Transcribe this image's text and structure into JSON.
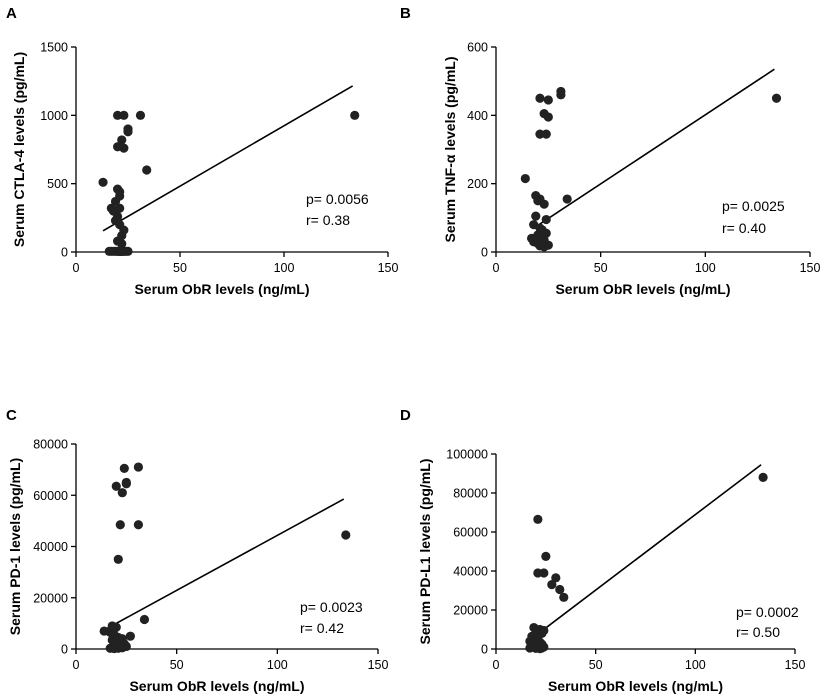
{
  "chart_data": [
    {
      "type": "scatter",
      "panel_label": "A",
      "xlabel": "Serum ObR levels (ng/mL)",
      "ylabel": "Serum CTLA-4 levels (pg/mL)",
      "xlim": [
        0,
        150
      ],
      "ylim": [
        0,
        1500
      ],
      "xticks": [
        "0",
        "50",
        "100",
        "150"
      ],
      "yticks": [
        "0",
        "500",
        "1000",
        "1500"
      ],
      "p_text": "p= 0.0056",
      "r_text": "r= 0.38",
      "fit_line": {
        "x": [
          13,
          133
        ],
        "y": [
          155,
          1215
        ]
      },
      "points": {
        "x": [
          20,
          23,
          31,
          25,
          25,
          22,
          20,
          23,
          34,
          20,
          21,
          21,
          13,
          19,
          21,
          17,
          18,
          20,
          19,
          21,
          23,
          22,
          20,
          22,
          21,
          22,
          16,
          18,
          20,
          21,
          23,
          25,
          19,
          20,
          22,
          23,
          17,
          21,
          22,
          24,
          134
        ],
        "y": [
          1000,
          1000,
          1000,
          900,
          880,
          820,
          770,
          760,
          600,
          460,
          440,
          410,
          510,
          370,
          320,
          320,
          300,
          260,
          230,
          200,
          160,
          120,
          80,
          60,
          5,
          5,
          5,
          5,
          5,
          5,
          5,
          5,
          5,
          5,
          5,
          5,
          5,
          5,
          5,
          5,
          1000
        ]
      }
    },
    {
      "type": "scatter",
      "panel_label": "B",
      "xlabel": "Serum ObR levels (ng/mL)",
      "ylabel": "Serum TNF-α levels (pg/mL)",
      "xlim": [
        0,
        150
      ],
      "ylim": [
        0,
        600
      ],
      "xticks": [
        "0",
        "50",
        "100",
        "150"
      ],
      "yticks": [
        "0",
        "200",
        "400",
        "600"
      ],
      "p_text": "p= 0.0025",
      "r_text": "r= 0.40",
      "fit_line": {
        "x": [
          20,
          133
        ],
        "y": [
          78,
          535
        ]
      },
      "points": {
        "x": [
          31,
          31,
          21,
          25,
          23,
          25,
          21,
          24,
          14,
          19,
          21,
          20,
          23,
          24,
          19,
          34,
          18,
          21,
          22,
          24,
          20,
          19,
          22,
          23,
          21,
          18,
          20,
          22,
          24,
          25,
          19,
          21,
          23,
          17,
          20,
          134
        ],
        "y": [
          470,
          460,
          450,
          445,
          405,
          395,
          345,
          345,
          215,
          165,
          155,
          150,
          140,
          95,
          105,
          155,
          80,
          70,
          65,
          55,
          45,
          40,
          40,
          35,
          30,
          30,
          25,
          25,
          20,
          20,
          35,
          18,
          15,
          40,
          50,
          450
        ]
      }
    },
    {
      "type": "scatter",
      "panel_label": "C",
      "xlabel": "Serum ObR levels (ng/mL)",
      "ylabel": "Serum PD-1 levels (pg/mL)",
      "xlim": [
        0,
        150
      ],
      "ylim": [
        0,
        80000
      ],
      "xticks": [
        "0",
        "50",
        "100",
        "150"
      ],
      "yticks": [
        "0",
        "20000",
        "40000",
        "60000",
        "80000"
      ],
      "p_text": "p= 0.0023",
      "r_text": "r= 0.42",
      "fit_line": {
        "x": [
          13,
          133
        ],
        "y": [
          7000,
          58500
        ]
      },
      "points": {
        "x": [
          24,
          31,
          25,
          20,
          23,
          25,
          22,
          31,
          21,
          14,
          34,
          18,
          20,
          17,
          19,
          27,
          21,
          23,
          18,
          20,
          22,
          24,
          19,
          21,
          25,
          20,
          22,
          18,
          23,
          21,
          17,
          19,
          134
        ],
        "y": [
          70500,
          71000,
          64500,
          63500,
          61000,
          65000,
          48500,
          48500,
          35000,
          7000,
          11500,
          9000,
          8500,
          6500,
          5500,
          5000,
          4500,
          4000,
          3500,
          3000,
          2500,
          2000,
          1500,
          1500,
          1000,
          1000,
          800,
          500,
          500,
          300,
          300,
          200,
          44500
        ]
      }
    },
    {
      "type": "scatter",
      "panel_label": "D",
      "xlabel": "Serum ObR levels (ng/mL)",
      "ylabel": "Serum PD-L1 levels (pg/mL)",
      "xlim": [
        0,
        150
      ],
      "ylim": [
        0,
        100000
      ],
      "xticks": [
        "0",
        "50",
        "100",
        "150"
      ],
      "yticks": [
        "0",
        "20000",
        "40000",
        "60000",
        "80000",
        "100000"
      ],
      "p_text": "p= 0.0002",
      "r_text": "r= 0.50",
      "fit_line": {
        "x": [
          22,
          133
        ],
        "y": [
          8500,
          94500
        ]
      },
      "points": {
        "x": [
          21,
          25,
          21,
          24,
          30,
          32,
          28,
          34,
          19,
          22,
          24,
          20,
          23,
          18,
          21,
          17,
          20,
          22,
          19,
          23,
          21,
          18,
          20,
          22,
          24,
          19,
          21,
          23,
          17,
          20,
          22,
          134
        ],
        "y": [
          66500,
          47500,
          39000,
          39000,
          36500,
          30500,
          33000,
          26500,
          11000,
          10000,
          9500,
          8500,
          8000,
          6500,
          5000,
          4000,
          3500,
          3500,
          3000,
          2500,
          2000,
          2000,
          1500,
          1500,
          1000,
          1000,
          800,
          500,
          500,
          300,
          200,
          88000
        ]
      }
    }
  ]
}
